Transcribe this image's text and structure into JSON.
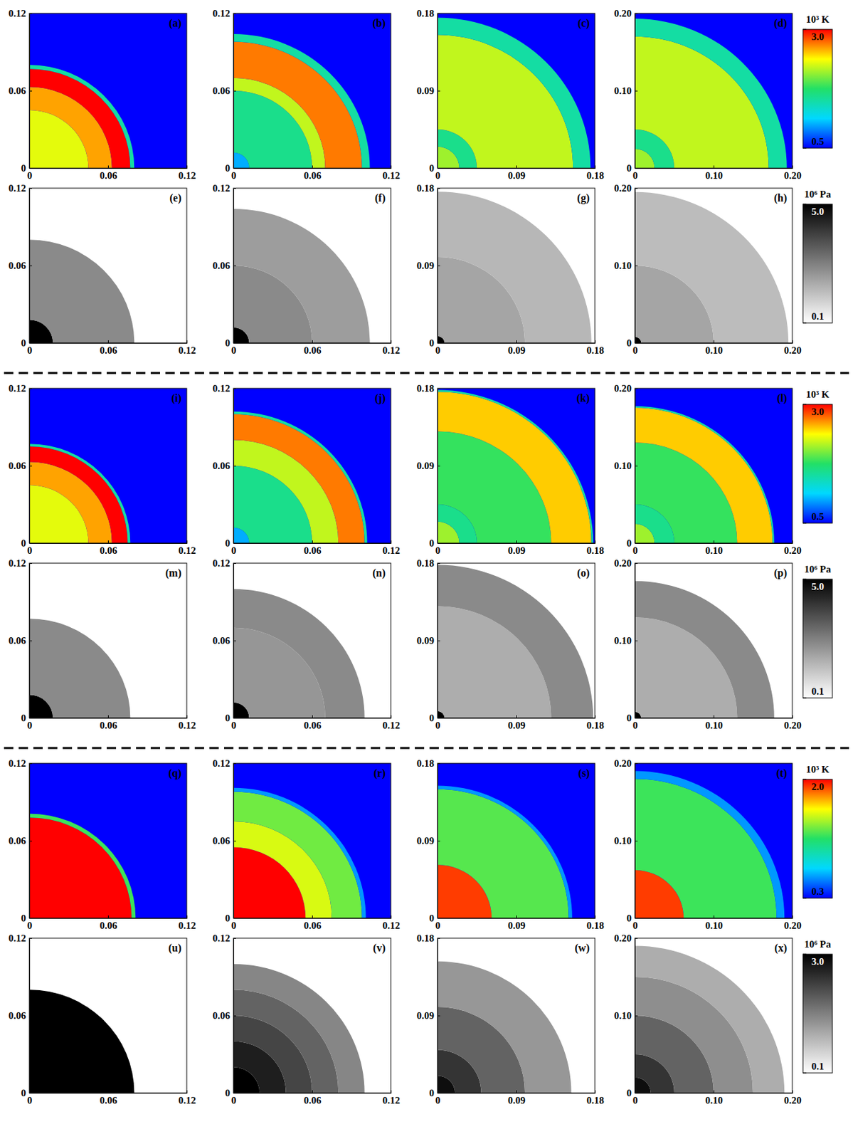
{
  "chart_data": [
    {
      "type": "heatmap",
      "colorbar": {
        "label": "10³ K",
        "range": [
          0.5,
          3.0
        ],
        "ticks": [
          0.5,
          {
            "value": 3,
            "label": "3.0"
          }
        ]
      },
      "panels": [
        {
          "title": "(a)",
          "xlim": [
            0,
            0.12
          ],
          "ylim": [
            0,
            0.12
          ],
          "xticks": [
            0,
            0.06,
            0.12
          ],
          "yticks": [
            0,
            0.06,
            0.12
          ],
          "radii": [
            0,
            0.045,
            0.063,
            0.077,
            0.08
          ],
          "values": [
            2.3,
            2.6,
            3.0,
            1.5
          ],
          "ambient": 0.5
        },
        {
          "title": "(b)",
          "xlim": [
            0,
            0.12
          ],
          "ylim": [
            0,
            0.12
          ],
          "xticks": [
            0,
            0.06,
            0.12
          ],
          "yticks": [
            0,
            0.06,
            0.12
          ],
          "radii": [
            0,
            0.012,
            0.06,
            0.07,
            0.098,
            0.104
          ],
          "values": [
            1.0,
            1.6,
            2.2,
            2.7,
            1.5
          ],
          "ambient": 0.5
        },
        {
          "title": "(c)",
          "xlim": [
            0,
            0.18
          ],
          "ylim": [
            0,
            0.18
          ],
          "xticks": [
            0,
            0.09,
            0.18
          ],
          "yticks": [
            0,
            0.09,
            0.18
          ],
          "radii": [
            0,
            0.025,
            0.045,
            0.155,
            0.175
          ],
          "values": [
            2.1,
            1.6,
            2.2,
            1.5
          ],
          "ambient": 0.5
        },
        {
          "title": "(d)",
          "xlim": [
            0,
            0.2
          ],
          "ylim": [
            0,
            0.2
          ],
          "xticks": [
            0,
            {
              "value": 0.1,
              "label": "0.10"
            },
            {
              "value": 0.2,
              "label": "0.20"
            }
          ],
          "yticks": [
            0,
            {
              "value": 0.1,
              "label": "0.10"
            },
            {
              "value": 0.2,
              "label": "0.20"
            }
          ],
          "radii": [
            0,
            0.025,
            0.05,
            0.17,
            0.193
          ],
          "values": [
            2.1,
            1.6,
            2.2,
            1.5
          ],
          "ambient": 0.5
        }
      ]
    },
    {
      "type": "heatmap",
      "log": true,
      "colorbar": {
        "label": "10⁶ Pa",
        "range": [
          0.1,
          5.0
        ],
        "ticks": [
          0.1,
          {
            "value": 5,
            "label": "5.0"
          }
        ]
      },
      "panels": [
        {
          "title": "(e)",
          "xlim": [
            0,
            0.12
          ],
          "ylim": [
            0,
            0.12
          ],
          "xticks": [
            0,
            0.06,
            0.12
          ],
          "yticks": [
            0,
            0.06,
            0.12
          ],
          "radii": [
            0,
            0.018,
            0.08
          ],
          "values": [
            5.0,
            0.6
          ],
          "ambient": 0.1
        },
        {
          "title": "(f)",
          "xlim": [
            0,
            0.12
          ],
          "ylim": [
            0,
            0.12
          ],
          "xticks": [
            0,
            0.06,
            0.12
          ],
          "yticks": [
            0,
            0.06,
            0.12
          ],
          "radii": [
            0,
            0.012,
            0.06,
            0.104
          ],
          "values": [
            5.0,
            0.6,
            0.45
          ],
          "ambient": 0.1
        },
        {
          "title": "(g)",
          "xlim": [
            0,
            0.18
          ],
          "ylim": [
            0,
            0.18
          ],
          "xticks": [
            0,
            0.09,
            0.18
          ],
          "yticks": [
            0,
            0.09,
            0.18
          ],
          "radii": [
            0,
            0.008,
            0.1,
            0.176
          ],
          "values": [
            5.0,
            0.4,
            0.3
          ],
          "ambient": 0.1
        },
        {
          "title": "(h)",
          "xlim": [
            0,
            0.2
          ],
          "ylim": [
            0,
            0.2
          ],
          "xticks": [
            0,
            {
              "value": 0.1,
              "label": "0.10"
            },
            {
              "value": 0.2,
              "label": "0.20"
            }
          ],
          "yticks": [
            0,
            {
              "value": 0.1,
              "label": "0.10"
            },
            {
              "value": 0.2,
              "label": "0.20"
            }
          ],
          "radii": [
            0,
            0.008,
            0.1,
            0.195
          ],
          "values": [
            5.0,
            0.4,
            0.28
          ],
          "ambient": 0.1
        }
      ]
    },
    {
      "type": "heatmap",
      "colorbar": {
        "label": "10³ K",
        "range": [
          0.5,
          3.0
        ],
        "ticks": [
          0.5,
          {
            "value": 3,
            "label": "3.0"
          }
        ]
      },
      "panels": [
        {
          "title": "(i)",
          "xlim": [
            0,
            0.12
          ],
          "ylim": [
            0,
            0.12
          ],
          "xticks": [
            0,
            0.06,
            0.12
          ],
          "yticks": [
            0,
            0.06,
            0.12
          ],
          "radii": [
            0,
            0.045,
            0.063,
            0.075,
            0.077
          ],
          "values": [
            2.3,
            2.6,
            3.0,
            1.5
          ],
          "ambient": 0.5
        },
        {
          "title": "(j)",
          "xlim": [
            0,
            0.12
          ],
          "ylim": [
            0,
            0.12
          ],
          "xticks": [
            0,
            0.06,
            0.12
          ],
          "yticks": [
            0,
            0.06,
            0.12
          ],
          "radii": [
            0,
            0.012,
            0.06,
            0.08,
            0.1,
            0.102
          ],
          "values": [
            1.0,
            1.6,
            2.2,
            2.7,
            1.5
          ],
          "ambient": 0.5
        },
        {
          "title": "(k)",
          "xlim": [
            0,
            0.18
          ],
          "ylim": [
            0,
            0.18
          ],
          "xticks": [
            0,
            0.09,
            0.18
          ],
          "yticks": [
            0,
            0.09,
            0.18
          ],
          "radii": [
            0,
            0.025,
            0.045,
            0.13,
            0.176,
            0.178
          ],
          "values": [
            2.1,
            1.6,
            1.8,
            2.5,
            1.5
          ],
          "ambient": 0.5
        },
        {
          "title": "(l)",
          "xlim": [
            0,
            0.2
          ],
          "ylim": [
            0,
            0.2
          ],
          "xticks": [
            0,
            {
              "value": 0.1,
              "label": "0.10"
            },
            {
              "value": 0.2,
              "label": "0.20"
            }
          ],
          "yticks": [
            0,
            {
              "value": 0.1,
              "label": "0.10"
            },
            {
              "value": 0.2,
              "label": "0.20"
            }
          ],
          "radii": [
            0,
            0.025,
            0.05,
            0.13,
            0.175,
            0.177
          ],
          "values": [
            2.1,
            1.6,
            1.8,
            2.5,
            1.5
          ],
          "ambient": 0.5
        }
      ]
    },
    {
      "type": "heatmap",
      "log": true,
      "colorbar": {
        "label": "10⁶ Pa",
        "range": [
          0.1,
          5.0
        ],
        "ticks": [
          0.1,
          {
            "value": 5,
            "label": "5.0"
          }
        ]
      },
      "panels": [
        {
          "title": "(m)",
          "xlim": [
            0,
            0.12
          ],
          "ylim": [
            0,
            0.12
          ],
          "xticks": [
            0,
            0.06,
            0.12
          ],
          "yticks": [
            0,
            0.06,
            0.12
          ],
          "radii": [
            0,
            0.018,
            0.077
          ],
          "values": [
            5.0,
            0.6
          ],
          "ambient": 0.1
        },
        {
          "title": "(n)",
          "xlim": [
            0,
            0.12
          ],
          "ylim": [
            0,
            0.12
          ],
          "xticks": [
            0,
            0.06,
            0.12
          ],
          "yticks": [
            0,
            0.06,
            0.12
          ],
          "radii": [
            0,
            0.012,
            0.07,
            0.1
          ],
          "values": [
            5.0,
            0.5,
            0.6
          ],
          "ambient": 0.1
        },
        {
          "title": "(o)",
          "xlim": [
            0,
            0.18
          ],
          "ylim": [
            0,
            0.18
          ],
          "xticks": [
            0,
            0.09,
            0.18
          ],
          "yticks": [
            0,
            0.09,
            0.18
          ],
          "radii": [
            0,
            0.008,
            0.13,
            0.178
          ],
          "values": [
            5.0,
            0.35,
            0.6
          ],
          "ambient": 0.1
        },
        {
          "title": "(p)",
          "xlim": [
            0,
            0.2
          ],
          "ylim": [
            0,
            0.2
          ],
          "xticks": [
            0,
            {
              "value": 0.1,
              "label": "0.10"
            },
            {
              "value": 0.2,
              "label": "0.20"
            }
          ],
          "yticks": [
            0,
            {
              "value": 0.1,
              "label": "0.10"
            },
            {
              "value": 0.2,
              "label": "0.20"
            }
          ],
          "radii": [
            0,
            0.008,
            0.13,
            0.177
          ],
          "values": [
            5.0,
            0.35,
            0.6
          ],
          "ambient": 0.1
        }
      ]
    },
    {
      "type": "heatmap",
      "colorbar": {
        "label": "10³ K",
        "range": [
          0.3,
          2.0
        ],
        "ticks": [
          0.3,
          {
            "value": 2,
            "label": "2.0"
          }
        ]
      },
      "panels": [
        {
          "title": "(q)",
          "xlim": [
            0,
            0.12
          ],
          "ylim": [
            0,
            0.12
          ],
          "xticks": [
            0,
            0.06,
            0.12
          ],
          "yticks": [
            0,
            0.06,
            0.12
          ],
          "radii": [
            0,
            0.078,
            0.081
          ],
          "values": [
            2.0,
            1.2
          ],
          "ambient": 0.3
        },
        {
          "title": "(r)",
          "xlim": [
            0,
            0.12
          ],
          "ylim": [
            0,
            0.12
          ],
          "xticks": [
            0,
            0.06,
            0.12
          ],
          "yticks": [
            0,
            0.06,
            0.12
          ],
          "radii": [
            0,
            0.055,
            0.075,
            0.098,
            0.101
          ],
          "values": [
            2.0,
            1.5,
            1.3,
            0.6
          ],
          "ambient": 0.3
        },
        {
          "title": "(s)",
          "xlim": [
            0,
            0.18
          ],
          "ylim": [
            0,
            0.18
          ],
          "xticks": [
            0,
            0.09,
            0.18
          ],
          "yticks": [
            0,
            0.09,
            0.18
          ],
          "radii": [
            0,
            0.062,
            0.15,
            0.154
          ],
          "values": [
            1.9,
            1.25,
            0.6
          ],
          "ambient": 0.3
        },
        {
          "title": "(t)",
          "xlim": [
            0,
            0.2
          ],
          "ylim": [
            0,
            0.2
          ],
          "xticks": [
            0,
            {
              "value": 0.1,
              "label": "0.10"
            },
            {
              "value": 0.2,
              "label": "0.20"
            }
          ],
          "yticks": [
            0,
            {
              "value": 0.1,
              "label": "0.10"
            },
            {
              "value": 0.2,
              "label": "0.20"
            }
          ],
          "radii": [
            0,
            0.062,
            0.18,
            0.19
          ],
          "values": [
            1.9,
            1.2,
            0.6
          ],
          "ambient": 0.3
        }
      ]
    },
    {
      "type": "heatmap",
      "log": true,
      "colorbar": {
        "label": "10⁶ Pa",
        "range": [
          0.1,
          3.0
        ],
        "ticks": [
          0.1,
          {
            "value": 3,
            "label": "3.0"
          }
        ]
      },
      "panels": [
        {
          "title": "(u)",
          "xlim": [
            0,
            0.12
          ],
          "ylim": [
            0,
            0.12
          ],
          "xticks": [
            0,
            0.06,
            0.12
          ],
          "yticks": [
            0,
            0.06,
            0.12
          ],
          "radii": [
            0,
            0.08
          ],
          "values": [
            3.0
          ],
          "ambient": 0.1
        },
        {
          "title": "(v)",
          "xlim": [
            0,
            0.12
          ],
          "ylim": [
            0,
            0.12
          ],
          "xticks": [
            0,
            0.06,
            0.12
          ],
          "yticks": [
            0,
            0.06,
            0.12
          ],
          "radii": [
            0,
            0.02,
            0.04,
            0.06,
            0.08,
            0.1
          ],
          "values": [
            3.0,
            2.0,
            1.2,
            0.8,
            0.5
          ],
          "ambient": 0.1
        },
        {
          "title": "(w)",
          "xlim": [
            0,
            0.18
          ],
          "ylim": [
            0,
            0.18
          ],
          "xticks": [
            0,
            0.09,
            0.18
          ],
          "yticks": [
            0,
            0.09,
            0.18
          ],
          "radii": [
            0,
            0.02,
            0.05,
            0.1,
            0.153
          ],
          "values": [
            2.5,
            1.5,
            0.8,
            0.4
          ],
          "ambient": 0.1
        },
        {
          "title": "(x)",
          "xlim": [
            0,
            0.2
          ],
          "ylim": [
            0,
            0.2
          ],
          "xticks": [
            0,
            {
              "value": 0.1,
              "label": "0.10"
            },
            {
              "value": 0.2,
              "label": "0.20"
            }
          ],
          "yticks": [
            0,
            {
              "value": 0.1,
              "label": "0.10"
            },
            {
              "value": 0.2,
              "label": "0.20"
            }
          ],
          "radii": [
            0,
            0.02,
            0.05,
            0.1,
            0.15,
            0.19
          ],
          "values": [
            2.5,
            1.5,
            0.8,
            0.45,
            0.3
          ],
          "ambient": 0.1
        }
      ]
    }
  ]
}
